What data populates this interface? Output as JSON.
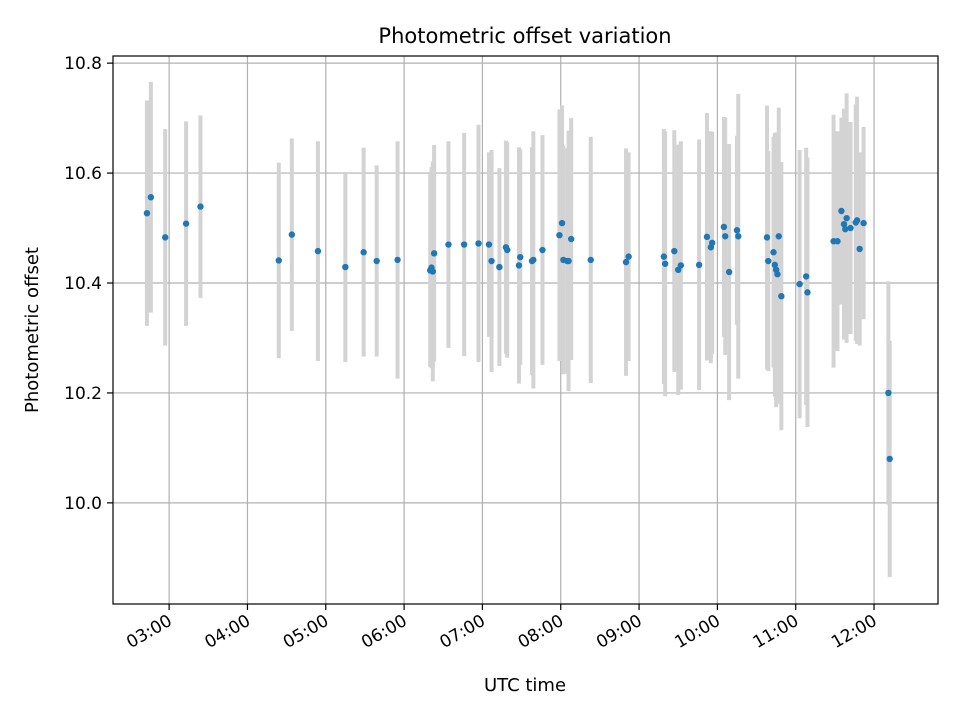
{
  "chart_data": {
    "type": "scatter",
    "title": "Photometric offset variation",
    "xlabel": "UTC time",
    "ylabel": "Photometric offset",
    "x_is_time": true,
    "xlim": [
      "02:17",
      "12:49"
    ],
    "ylim": [
      9.816,
      10.813
    ],
    "grid": true,
    "x_ticks": [
      "03:00",
      "04:00",
      "05:00",
      "06:00",
      "07:00",
      "08:00",
      "09:00",
      "10:00",
      "11:00",
      "12:00"
    ],
    "y_ticks": [
      10.0,
      10.2,
      10.4,
      10.6,
      10.8
    ],
    "y_tick_labels": [
      "10.0",
      "10.2",
      "10.4",
      "10.6",
      "10.8"
    ],
    "colors": {
      "points": "#1f77b4",
      "error_bars": "#d3d3d3",
      "grid": "#b0b0b0"
    },
    "series": [
      {
        "points": [
          {
            "x": "02:43",
            "y": 10.527,
            "err": 0.205
          },
          {
            "x": "02:46",
            "y": 10.556,
            "err": 0.21
          },
          {
            "x": "02:57",
            "y": 10.483,
            "err": 0.197
          },
          {
            "x": "03:13",
            "y": 10.508,
            "err": 0.186
          },
          {
            "x": "03:24",
            "y": 10.539,
            "err": 0.166
          },
          {
            "x": "04:24",
            "y": 10.441,
            "err": 0.178
          },
          {
            "x": "04:34",
            "y": 10.488,
            "err": 0.175
          },
          {
            "x": "04:54",
            "y": 10.458,
            "err": 0.2
          },
          {
            "x": "05:15",
            "y": 10.429,
            "err": 0.173
          },
          {
            "x": "05:29",
            "y": 10.456,
            "err": 0.19
          },
          {
            "x": "05:39",
            "y": 10.44,
            "err": 0.174
          },
          {
            "x": "05:55",
            "y": 10.442,
            "err": 0.216
          },
          {
            "x": "06:20",
            "y": 10.423,
            "err": 0.176
          },
          {
            "x": "06:21",
            "y": 10.428,
            "err": 0.183
          },
          {
            "x": "06:22",
            "y": 10.421,
            "err": 0.2
          },
          {
            "x": "06:23",
            "y": 10.454,
            "err": 0.197
          },
          {
            "x": "06:34",
            "y": 10.47,
            "err": 0.188
          },
          {
            "x": "06:46",
            "y": 10.47,
            "err": 0.203
          },
          {
            "x": "06:57",
            "y": 10.472,
            "err": 0.216
          },
          {
            "x": "07:05",
            "y": 10.47,
            "err": 0.168
          },
          {
            "x": "07:07",
            "y": 10.44,
            "err": 0.202
          },
          {
            "x": "07:13",
            "y": 10.429,
            "err": 0.18
          },
          {
            "x": "07:18",
            "y": 10.465,
            "err": 0.194
          },
          {
            "x": "07:19",
            "y": 10.46,
            "err": 0.196
          },
          {
            "x": "07:28",
            "y": 10.432,
            "err": 0.215
          },
          {
            "x": "07:29",
            "y": 10.447,
            "err": 0.196
          },
          {
            "x": "07:38",
            "y": 10.44,
            "err": 0.207
          },
          {
            "x": "07:39",
            "y": 10.442,
            "err": 0.234
          },
          {
            "x": "07:46",
            "y": 10.46,
            "err": 0.209
          },
          {
            "x": "07:59",
            "y": 10.487,
            "err": 0.229
          },
          {
            "x": "08:01",
            "y": 10.509,
            "err": 0.214
          },
          {
            "x": "08:02",
            "y": 10.442,
            "err": 0.208
          },
          {
            "x": "08:05",
            "y": 10.44,
            "err": 0.205
          },
          {
            "x": "08:06",
            "y": 10.44,
            "err": 0.237
          },
          {
            "x": "08:08",
            "y": 10.48,
            "err": 0.22
          },
          {
            "x": "08:23",
            "y": 10.442,
            "err": 0.224
          },
          {
            "x": "08:50",
            "y": 10.438,
            "err": 0.207
          },
          {
            "x": "08:52",
            "y": 10.448,
            "err": 0.19
          },
          {
            "x": "09:19",
            "y": 10.448,
            "err": 0.232
          },
          {
            "x": "09:20",
            "y": 10.435,
            "err": 0.241
          },
          {
            "x": "09:27",
            "y": 10.458,
            "err": 0.22
          },
          {
            "x": "09:30",
            "y": 10.424,
            "err": 0.228
          },
          {
            "x": "09:32",
            "y": 10.432,
            "err": 0.226
          },
          {
            "x": "09:46",
            "y": 10.433,
            "err": 0.228
          },
          {
            "x": "09:52",
            "y": 10.484,
            "err": 0.225
          },
          {
            "x": "09:55",
            "y": 10.465,
            "err": 0.211
          },
          {
            "x": "09:56",
            "y": 10.473,
            "err": 0.202
          },
          {
            "x": "10:05",
            "y": 10.502,
            "err": 0.2
          },
          {
            "x": "10:06",
            "y": 10.485,
            "err": 0.216
          },
          {
            "x": "10:09",
            "y": 10.42,
            "err": 0.233
          },
          {
            "x": "10:15",
            "y": 10.496,
            "err": 0.172
          },
          {
            "x": "10:16",
            "y": 10.485,
            "err": 0.259
          },
          {
            "x": "10:38",
            "y": 10.483,
            "err": 0.24
          },
          {
            "x": "10:39",
            "y": 10.44,
            "err": 0.2
          },
          {
            "x": "10:43",
            "y": 10.456,
            "err": 0.21
          },
          {
            "x": "10:44",
            "y": 10.433,
            "err": 0.24
          },
          {
            "x": "10:45",
            "y": 10.424,
            "err": 0.25
          },
          {
            "x": "10:46",
            "y": 10.416,
            "err": 0.236
          },
          {
            "x": "10:47",
            "y": 10.485,
            "err": 0.234
          },
          {
            "x": "10:49",
            "y": 10.376,
            "err": 0.244
          },
          {
            "x": "11:03",
            "y": 10.398,
            "err": 0.244
          },
          {
            "x": "11:08",
            "y": 10.412,
            "err": 0.234
          },
          {
            "x": "11:09",
            "y": 10.383,
            "err": 0.245
          },
          {
            "x": "11:29",
            "y": 10.476,
            "err": 0.23
          },
          {
            "x": "11:32",
            "y": 10.476,
            "err": 0.2
          },
          {
            "x": "11:35",
            "y": 10.531,
            "err": 0.17
          },
          {
            "x": "11:37",
            "y": 10.507,
            "err": 0.21
          },
          {
            "x": "11:38",
            "y": 10.498,
            "err": 0.2
          },
          {
            "x": "11:39",
            "y": 10.518,
            "err": 0.227
          },
          {
            "x": "11:42",
            "y": 10.5,
            "err": 0.193
          },
          {
            "x": "11:46",
            "y": 10.51,
            "err": 0.215
          },
          {
            "x": "11:47",
            "y": 10.514,
            "err": 0.225
          },
          {
            "x": "11:49",
            "y": 10.462,
            "err": 0.176
          },
          {
            "x": "11:52",
            "y": 10.509,
            "err": 0.175
          },
          {
            "x": "12:11",
            "y": 10.2,
            "err": 0.203
          },
          {
            "x": "12:12",
            "y": 10.08,
            "err": 0.215
          }
        ]
      }
    ]
  }
}
